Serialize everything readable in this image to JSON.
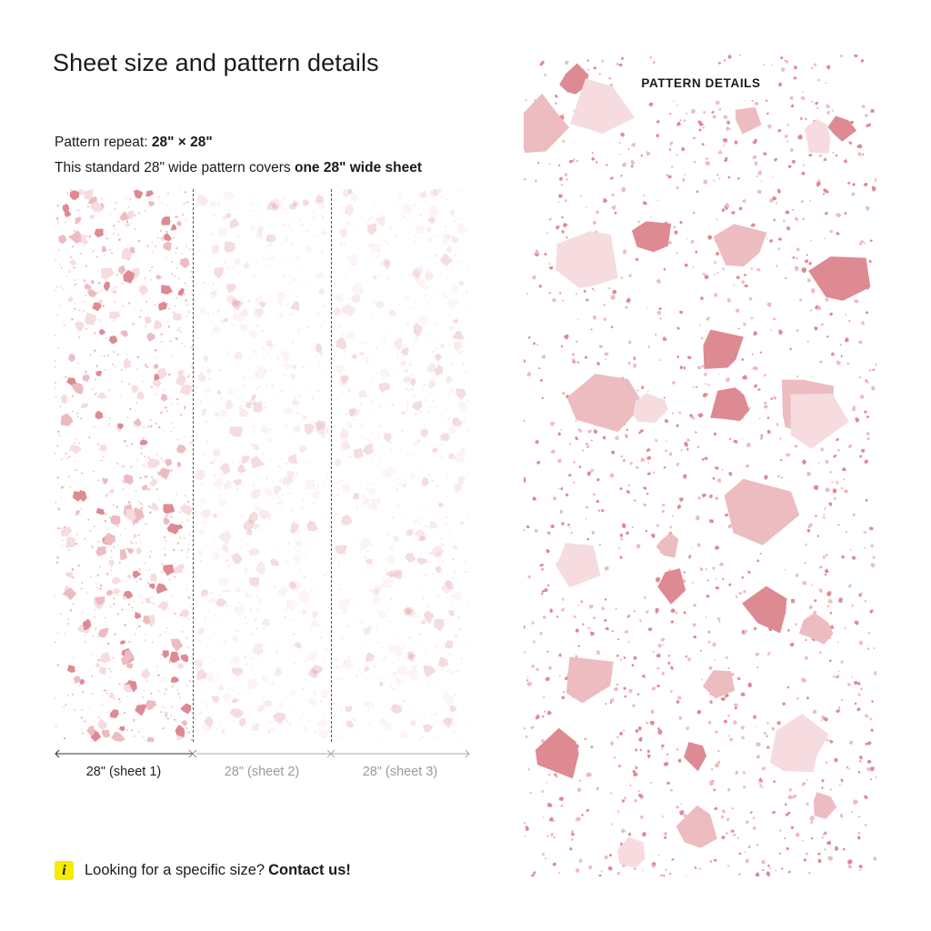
{
  "title": "Sheet size and pattern details",
  "repeat": {
    "label": "Pattern repeat:",
    "value": "28\" × 28\""
  },
  "coverage": {
    "text": "This standard 28\" wide pattern covers",
    "value": "one 28\" wide sheet"
  },
  "sheets": [
    {
      "label": "28\" (sheet 1)"
    },
    {
      "label": "28\" (sheet 2)"
    },
    {
      "label": "28\" (sheet 3)"
    }
  ],
  "info": {
    "icon": "info-icon",
    "glyph": "i",
    "text": "Looking for a specific size?",
    "link": "Contact us!"
  },
  "detail": {
    "label": "PATTERN DETAILS"
  },
  "colors": {
    "dark": "#de8a93",
    "mid": "#ecbcc1",
    "light": "#f6dcdf",
    "accent_yellow": "#f5ec00"
  }
}
